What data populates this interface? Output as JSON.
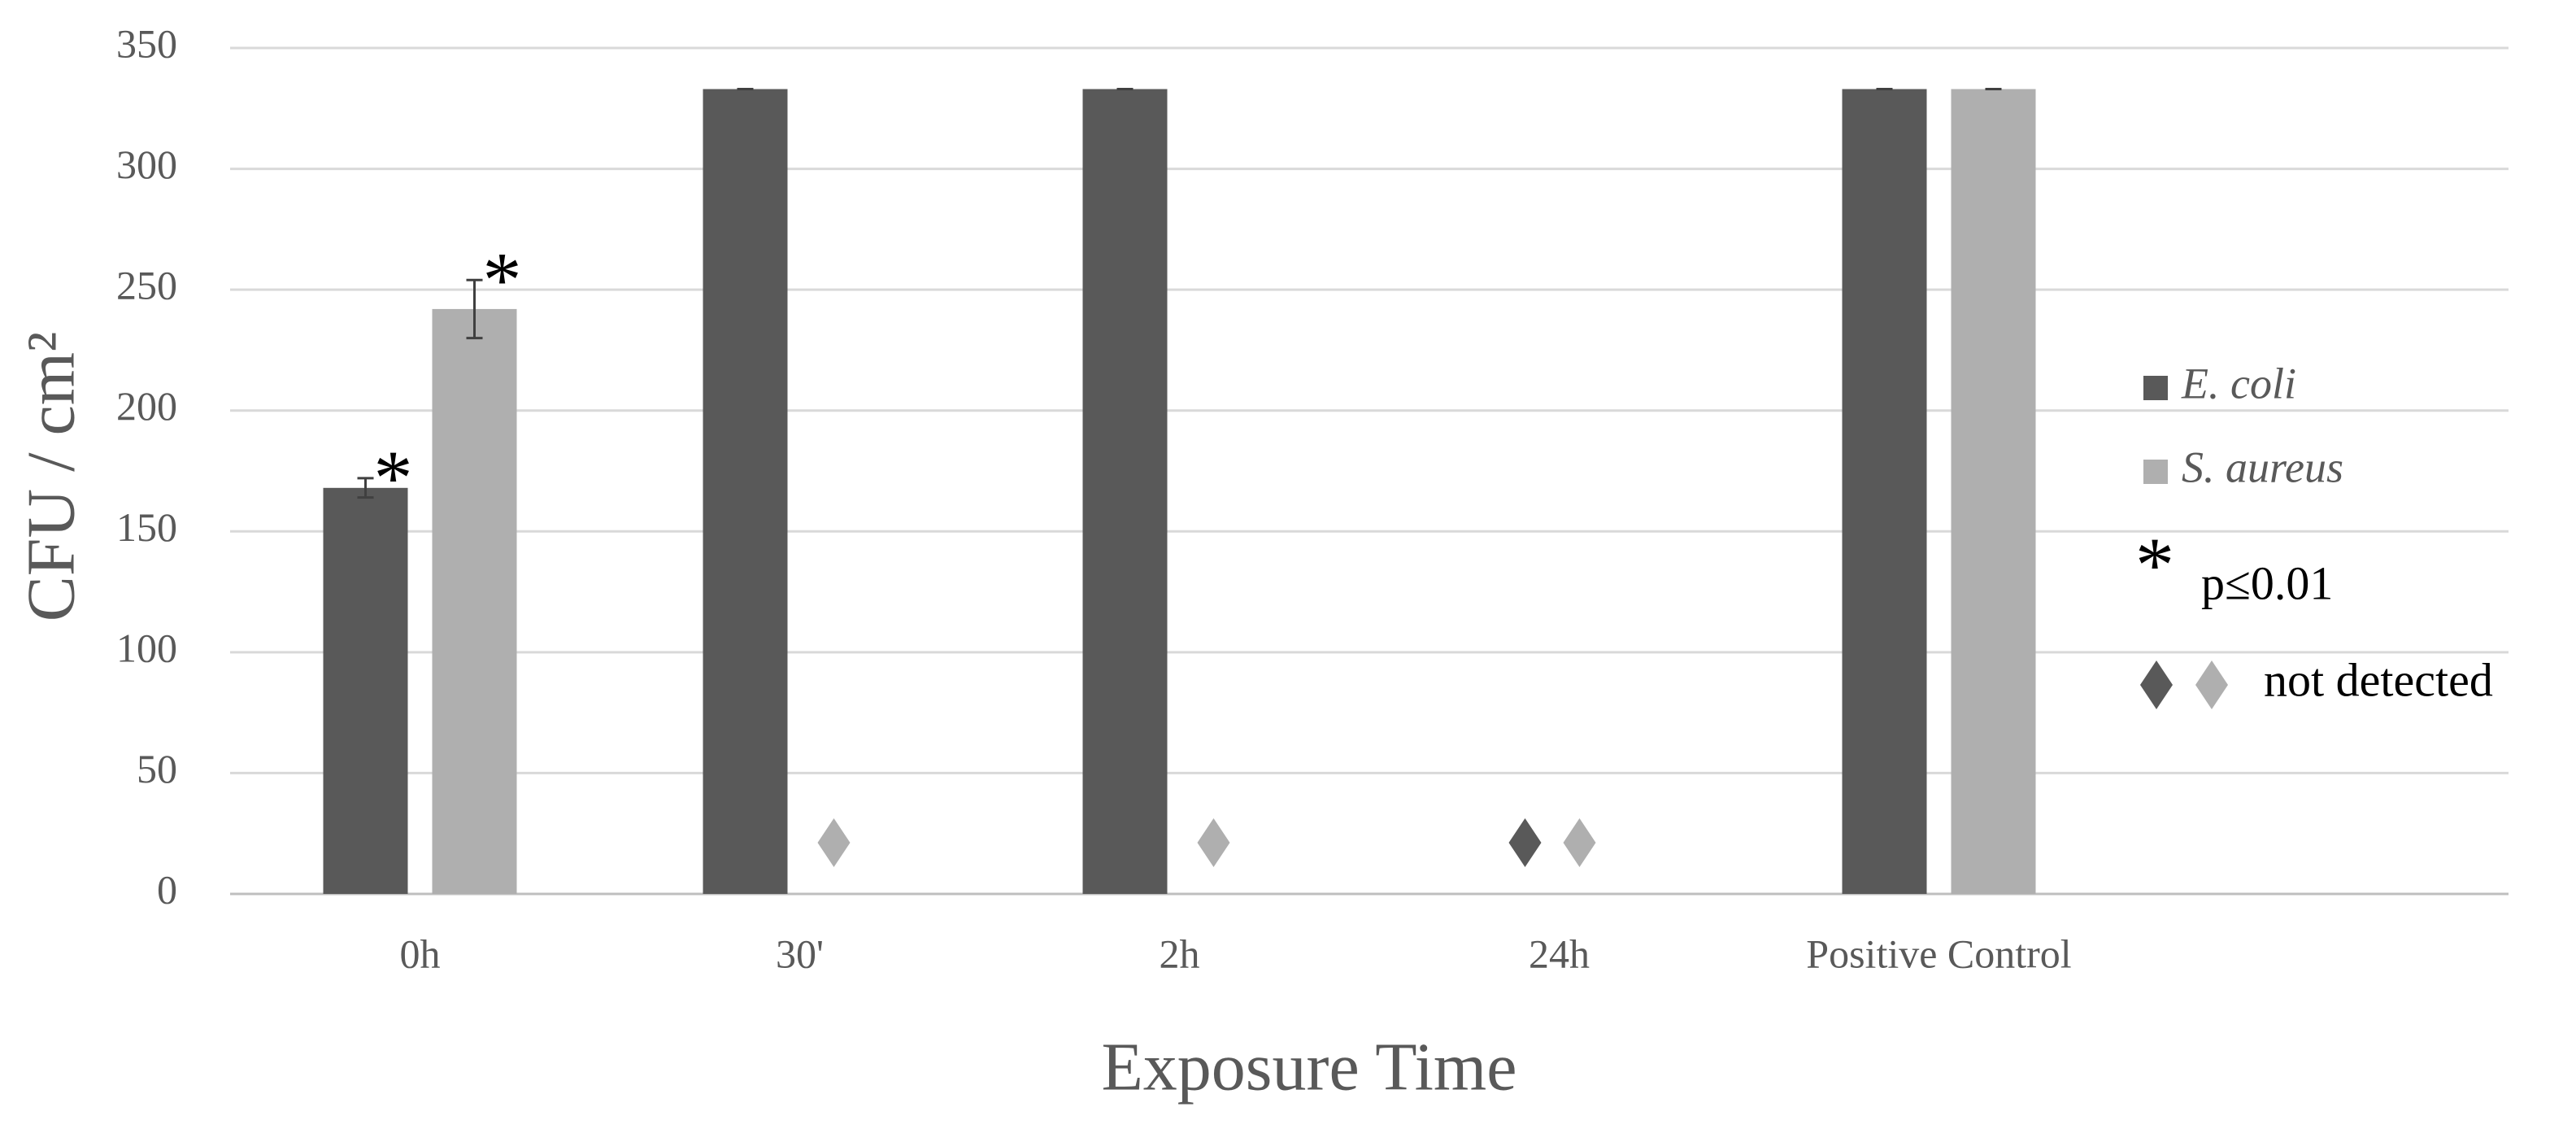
{
  "chart_data": {
    "type": "bar",
    "y_label": "CFU / cm²",
    "x_label": "Exposure Time",
    "categories": [
      "0h",
      "30'",
      "2h",
      "24h",
      "Positive Control"
    ],
    "series": [
      {
        "name": "E. coli",
        "color": "#595959",
        "values": [
          168,
          333,
          333,
          null,
          333
        ],
        "errors": [
          4,
          0,
          0,
          null,
          0
        ],
        "annotations": [
          "*",
          null,
          null,
          null,
          null
        ]
      },
      {
        "name": "S. aureus",
        "color": "#afafaf",
        "values": [
          242,
          null,
          null,
          null,
          333
        ],
        "errors": [
          12,
          null,
          null,
          null,
          0
        ],
        "annotations": [
          "*",
          null,
          null,
          null,
          null
        ]
      }
    ],
    "ylim": [
      0,
      350
    ],
    "yticks": [
      0,
      50,
      100,
      150,
      200,
      250,
      300,
      350
    ],
    "grid": true,
    "legend_notes": {
      "significance_symbol": "*",
      "significance_label": "p≤0.01",
      "not_detected_label": "not detected"
    }
  }
}
